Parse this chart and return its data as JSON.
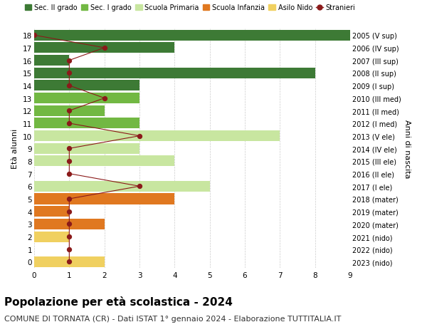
{
  "ages": [
    18,
    17,
    16,
    15,
    14,
    13,
    12,
    11,
    10,
    9,
    8,
    7,
    6,
    5,
    4,
    3,
    2,
    1,
    0
  ],
  "right_labels": [
    "2005 (V sup)",
    "2006 (IV sup)",
    "2007 (III sup)",
    "2008 (II sup)",
    "2009 (I sup)",
    "2010 (III med)",
    "2011 (II med)",
    "2012 (I med)",
    "2013 (V ele)",
    "2014 (IV ele)",
    "2015 (III ele)",
    "2016 (II ele)",
    "2017 (I ele)",
    "2018 (mater)",
    "2019 (mater)",
    "2020 (mater)",
    "2021 (nido)",
    "2022 (nido)",
    "2023 (nido)"
  ],
  "bar_values": [
    9,
    4,
    1,
    8,
    3,
    3,
    2,
    3,
    7,
    3,
    4,
    0,
    5,
    4,
    1,
    2,
    1,
    0,
    2
  ],
  "bar_colors": [
    "#3d7a35",
    "#3d7a35",
    "#3d7a35",
    "#3d7a35",
    "#3d7a35",
    "#72b843",
    "#72b843",
    "#72b843",
    "#c8e6a0",
    "#c8e6a0",
    "#c8e6a0",
    "#c8e6a0",
    "#c8e6a0",
    "#e07820",
    "#e07820",
    "#e07820",
    "#f0d060",
    "#f0d060",
    "#f0d060"
  ],
  "stranieri_values": [
    0,
    2,
    1,
    1,
    1,
    2,
    1,
    1,
    3,
    1,
    1,
    1,
    3,
    1,
    1,
    1,
    1,
    1,
    1
  ],
  "stranieri_color": "#8b1a1a",
  "legend_entries": [
    {
      "label": "Sec. II grado",
      "color": "#3d7a35",
      "type": "patch"
    },
    {
      "label": "Sec. I grado",
      "color": "#72b843",
      "type": "patch"
    },
    {
      "label": "Scuola Primaria",
      "color": "#c8e6a0",
      "type": "patch"
    },
    {
      "label": "Scuola Infanzia",
      "color": "#e07820",
      "type": "patch"
    },
    {
      "label": "Asilo Nido",
      "color": "#f0d060",
      "type": "patch"
    },
    {
      "label": "Stranieri",
      "color": "#8b1a1a",
      "type": "line"
    }
  ],
  "ylabel_left": "Età alunni",
  "ylabel_right": "Anni di nascita",
  "xlim": [
    0,
    9
  ],
  "title": "Popolazione per età scolastica - 2024",
  "subtitle": "COMUNE DI TORNATA (CR) - Dati ISTAT 1° gennaio 2024 - Elaborazione TUTTITALIA.IT",
  "title_fontsize": 11,
  "subtitle_fontsize": 8,
  "bg_color": "#ffffff",
  "grid_color": "#cccccc"
}
